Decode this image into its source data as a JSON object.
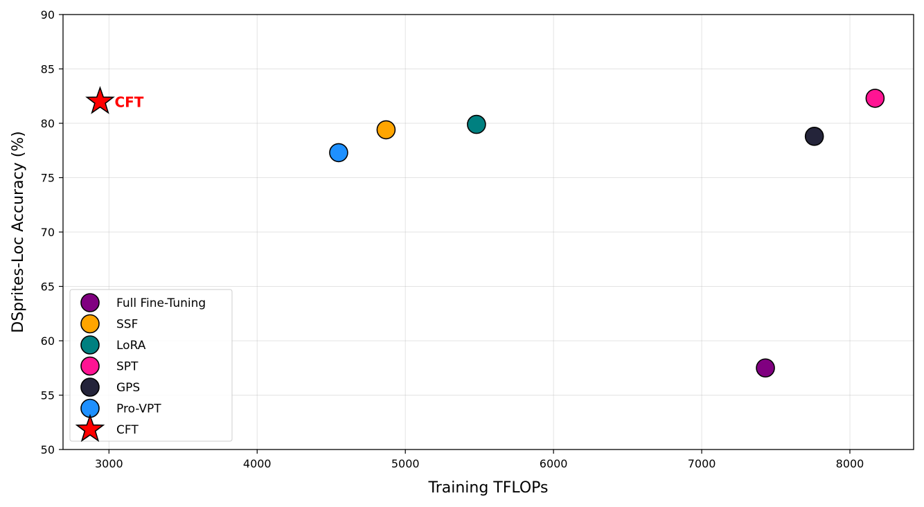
{
  "chart_data": {
    "type": "scatter",
    "xlabel": "Training TFLOPs",
    "ylabel": "DSprites-Loc Accuracy (%)",
    "xlim": [
      2690,
      8430
    ],
    "ylim": [
      50,
      90
    ],
    "xticks": [
      3000,
      4000,
      5000,
      6000,
      7000,
      8000
    ],
    "yticks": [
      50,
      55,
      60,
      65,
      70,
      75,
      80,
      85,
      90
    ],
    "grid": true,
    "legend_position": "lower-left",
    "series": [
      {
        "name": "Full Fine-Tuning",
        "x": 7430,
        "y": 57.5,
        "color": "#800080",
        "marker": "circle"
      },
      {
        "name": "SSF",
        "x": 4870,
        "y": 79.4,
        "color": "#FFA500",
        "marker": "circle"
      },
      {
        "name": "LoRA",
        "x": 5480,
        "y": 79.9,
        "color": "#008080",
        "marker": "circle"
      },
      {
        "name": "SPT",
        "x": 8170,
        "y": 82.3,
        "color": "#FF1493",
        "marker": "circle"
      },
      {
        "name": "GPS",
        "x": 7760,
        "y": 78.8,
        "color": "#24243A",
        "marker": "circle"
      },
      {
        "name": "Pro-VPT",
        "x": 4550,
        "y": 77.3,
        "color": "#1E90FF",
        "marker": "circle"
      },
      {
        "name": "CFT",
        "x": 2940,
        "y": 82.0,
        "color": "#FF0000",
        "marker": "star"
      }
    ],
    "annotations": [
      {
        "text": "CFT",
        "x": 2940,
        "y": 82.0,
        "color": "#FF0000"
      }
    ]
  }
}
